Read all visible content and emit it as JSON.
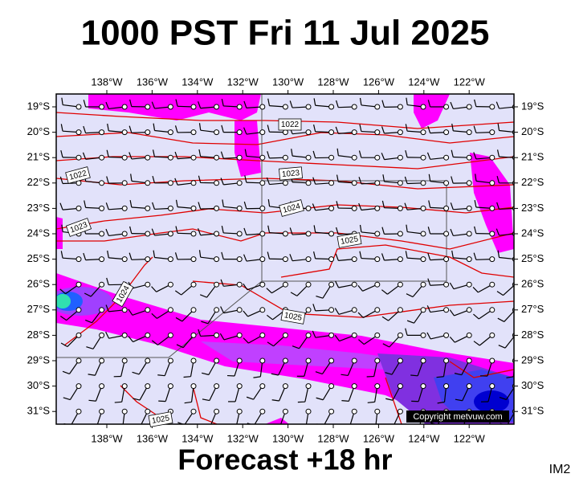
{
  "title": "1000 PST Fri 11 Jul 2025",
  "subtitle": "Forecast +18 hr",
  "product_code": "IM2",
  "copyright": "Copyright metvuw.com",
  "longitude_labels": [
    "138°W",
    "136°W",
    "134°W",
    "132°W",
    "130°W",
    "128°W",
    "126°W",
    "124°W",
    "122°W"
  ],
  "latitude_labels": [
    "19°S",
    "20°S",
    "21°S",
    "22°S",
    "23°S",
    "24°S",
    "25°S",
    "26°S",
    "27°S",
    "28°S",
    "29°S",
    "30°S",
    "31°S"
  ],
  "isobar_labels": [
    "1022",
    "1022",
    "1023",
    "1023",
    "1024",
    "1025",
    "1024",
    "1025",
    "1025"
  ]
}
